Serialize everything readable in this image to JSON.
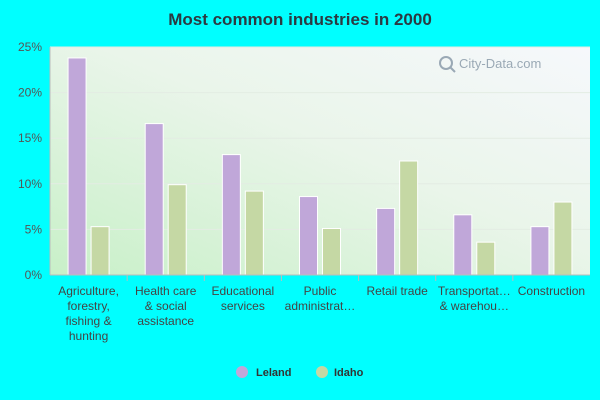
{
  "chart_data": {
    "type": "bar",
    "title": "Most common industries in 2000",
    "categories": [
      [
        "Agriculture,",
        "forestry,",
        "fishing &",
        "hunting"
      ],
      [
        "Health care",
        "& social",
        "assistance"
      ],
      [
        "Educational",
        "services"
      ],
      [
        "Public",
        "administrat…"
      ],
      [
        "Retail trade"
      ],
      [
        "Transportat…",
        "& warehou…"
      ],
      [
        "Construction"
      ]
    ],
    "series": [
      {
        "name": "Leland",
        "color": "#c0a7d9",
        "values": [
          23.8,
          16.6,
          13.2,
          8.6,
          7.3,
          6.6,
          5.3
        ]
      },
      {
        "name": "Idaho",
        "color": "#c5d8a4",
        "values": [
          5.3,
          9.9,
          9.2,
          5.1,
          12.5,
          3.6,
          8.0
        ]
      }
    ],
    "ylim": [
      0,
      25
    ],
    "yticks": [
      0,
      5,
      10,
      15,
      20,
      25
    ],
    "ytick_labels": [
      "0%",
      "5%",
      "10%",
      "15%",
      "20%",
      "25%"
    ],
    "grid": true,
    "legend_position": "bottom-center"
  },
  "watermark": {
    "text": "City-Data.com",
    "icon": "magnifier-icon"
  }
}
